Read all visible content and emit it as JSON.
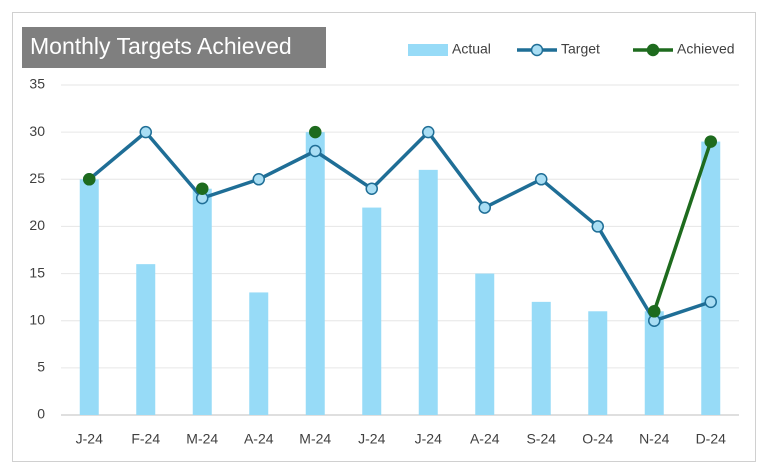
{
  "chart_data": {
    "type": "bar",
    "title": "Monthly Targets Achieved",
    "categories": [
      "J-24",
      "F-24",
      "M-24",
      "A-24",
      "M-24",
      "J-24",
      "J-24",
      "A-24",
      "S-24",
      "O-24",
      "N-24",
      "D-24"
    ],
    "series": [
      {
        "name": "Actual",
        "type": "bar",
        "color": "#97dbf7",
        "values": [
          25,
          16,
          24,
          13,
          30,
          22,
          26,
          15,
          12,
          11,
          11,
          29
        ]
      },
      {
        "name": "Target",
        "type": "line",
        "color": "#1f6e96",
        "marker_color": "#a9def4",
        "values": [
          25,
          30,
          23,
          25,
          28,
          24,
          30,
          22,
          25,
          20,
          10,
          12
        ]
      },
      {
        "name": "Achieved",
        "type": "line",
        "color": "#1e6b1e",
        "marker_color": "#1e6b1e",
        "values": [
          25,
          null,
          24,
          null,
          30,
          null,
          null,
          null,
          null,
          null,
          11,
          29
        ]
      }
    ],
    "ylim": [
      0,
      35
    ],
    "yticks": [
      0,
      5,
      10,
      15,
      20,
      25,
      30,
      35
    ],
    "grid": true
  }
}
